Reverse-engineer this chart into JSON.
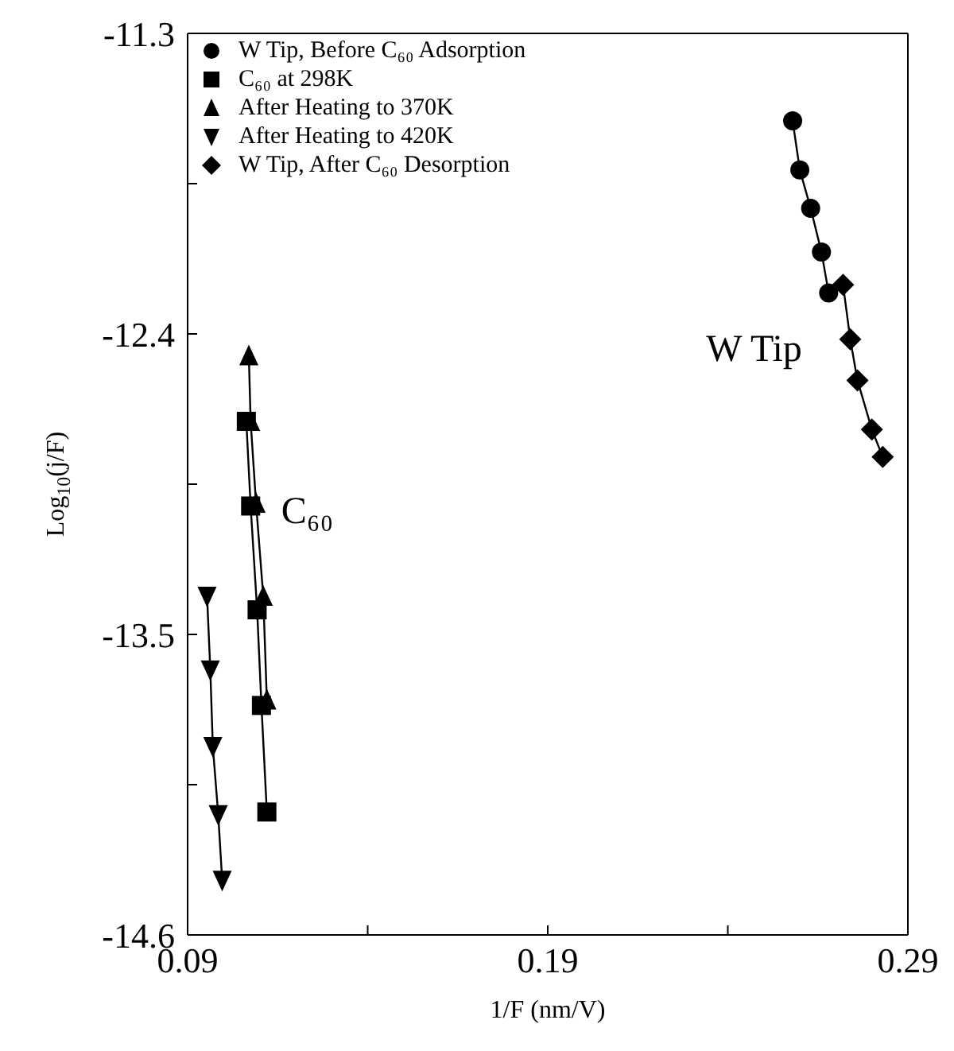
{
  "chart_data": {
    "type": "line",
    "xlabel": "1/F (nm/V)",
    "ylabel": "Log$_{10}$(j/F)",
    "xlim": [
      0.09,
      0.29
    ],
    "xticks": [
      0.09,
      {
        "value": 0.14,
        "label": null
      },
      0.19,
      {
        "value": 0.24,
        "label": null
      },
      0.29
    ],
    "ylim": [
      -14.6,
      -11.3
    ],
    "yticks": [
      -11.3,
      {
        "value": -11.85,
        "label": null
      },
      -12.4,
      {
        "value": -12.95,
        "label": null
      },
      -13.5,
      {
        "value": -14.05,
        "label": null
      },
      -14.6
    ],
    "legend": "top left",
    "line_style": "solid",
    "series": [
      {
        "name": "W Tip, Before C₆₀ Adsorption",
        "color": "#000000",
        "marker": "circle",
        "x": [
          0.258,
          0.26,
          0.263,
          0.266,
          0.268
        ],
        "values": [
          -11.62,
          -11.8,
          -11.94,
          -12.1,
          -12.25
        ]
      },
      {
        "name": "C₆₀ at 298K",
        "color": "#000000",
        "marker": "square",
        "x": [
          0.1063,
          0.1075,
          0.1093,
          0.1105,
          0.112
        ],
        "values": [
          -12.72,
          -13.03,
          -13.41,
          -13.76,
          -14.15
        ]
      },
      {
        "name": "After Heating to 370K",
        "color": "#000000",
        "marker": "triangle",
        "x": [
          0.107,
          0.1075,
          0.109,
          0.111,
          0.112
        ],
        "values": [
          -12.48,
          -12.72,
          -13.02,
          -13.36,
          -13.74
        ]
      },
      {
        "name": "After Heating to 420K",
        "color": "#000000",
        "marker": "triangle-down",
        "x": [
          0.0954,
          0.0963,
          0.097,
          0.0985,
          0.0996
        ],
        "values": [
          -13.36,
          -13.63,
          -13.91,
          -14.16,
          -14.4
        ]
      },
      {
        "name": "W Tip, After C₆₀ Desorption",
        "color": "#000000",
        "marker": "diamond",
        "x": [
          0.272,
          0.274,
          0.276,
          0.28,
          0.283
        ],
        "values": [
          -12.22,
          -12.42,
          -12.57,
          -12.75,
          -12.85
        ]
      }
    ],
    "annotations": [
      "W Tip",
      "C₆₀"
    ]
  }
}
